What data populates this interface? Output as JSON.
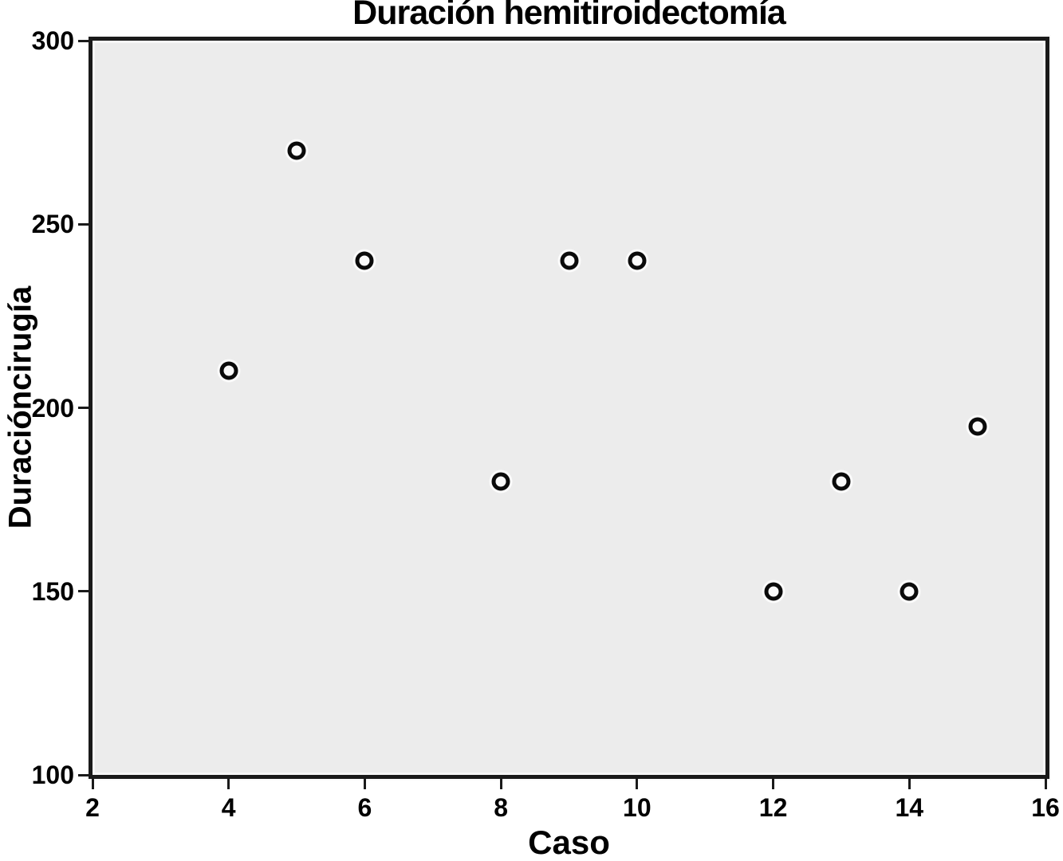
{
  "chart_data": {
    "type": "scatter",
    "title": "Duración hemitiroidectomía",
    "xlabel": "Caso",
    "ylabel": "Duracióncirugía",
    "xlim": [
      2,
      16
    ],
    "ylim": [
      100,
      300
    ],
    "xticks": [
      2,
      4,
      6,
      8,
      10,
      12,
      14,
      16
    ],
    "yticks": [
      100,
      150,
      200,
      250,
      300
    ],
    "grid": false,
    "legend": false,
    "marker_style": "open-circle",
    "points": [
      {
        "x": 4,
        "y": 210
      },
      {
        "x": 5,
        "y": 270
      },
      {
        "x": 6,
        "y": 240
      },
      {
        "x": 8,
        "y": 180
      },
      {
        "x": 9,
        "y": 240
      },
      {
        "x": 10,
        "y": 240
      },
      {
        "x": 12,
        "y": 150
      },
      {
        "x": 13,
        "y": 180
      },
      {
        "x": 14,
        "y": 150
      },
      {
        "x": 15,
        "y": 195
      }
    ],
    "colors": {
      "page_bg": "#ffffff",
      "plot_bg": "#ececec",
      "frame": "#1a1a1a",
      "text": "#000000",
      "marker_stroke": "#0b0b0b",
      "marker_fill": "#fafafa"
    }
  }
}
